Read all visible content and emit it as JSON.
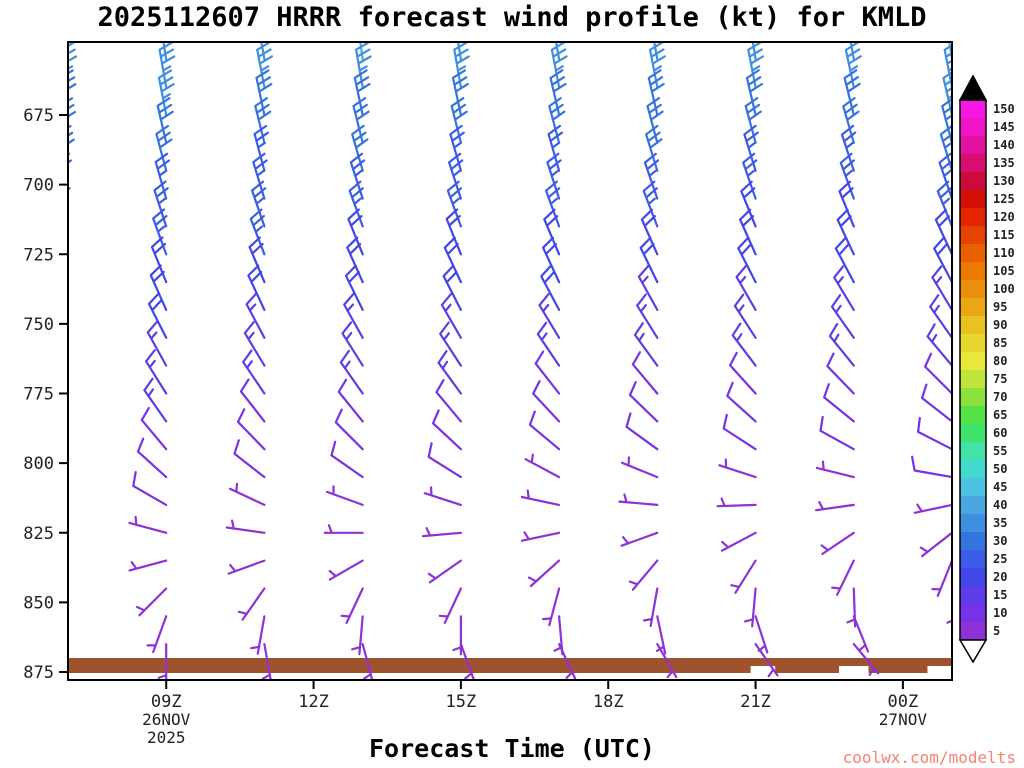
{
  "title": "2025112607 HRRR forecast wind profile (kt) for KMLD",
  "xlabel": "Forecast Time (UTC)",
  "watermark": {
    "text": "coolwx.com/modelts",
    "color": "#fa8072"
  },
  "chart_data": {
    "type": "wind-barb-profile",
    "units": "kt",
    "y_axis": {
      "label_values": [
        675,
        700,
        725,
        750,
        775,
        800,
        825,
        850,
        875
      ]
    },
    "x_axis": {
      "tick_hours": [
        9,
        12,
        15,
        18,
        21,
        24
      ],
      "tick_labels": [
        "09Z",
        "12Z",
        "15Z",
        "18Z",
        "21Z",
        "00Z"
      ],
      "date_labels": [
        {
          "text": "26NOV",
          "hour": 9,
          "row": 0
        },
        {
          "text": "2025",
          "hour": 9,
          "row": 1
        },
        {
          "text": "27NOV",
          "hour": 24,
          "row": 0
        }
      ]
    },
    "ground": {
      "color": "#a0522d",
      "gaps": [
        {
          "from": 20.9,
          "to": 21.4
        },
        {
          "from": 22.7,
          "to": 23.3
        },
        {
          "from": 24.5,
          "to": 25.1
        }
      ]
    },
    "colorbar": {
      "values": [
        5,
        10,
        15,
        20,
        25,
        30,
        35,
        40,
        45,
        50,
        55,
        60,
        65,
        70,
        75,
        80,
        85,
        90,
        95,
        100,
        105,
        110,
        115,
        120,
        125,
        130,
        135,
        140,
        145,
        150
      ],
      "colors": [
        "#8c32d7",
        "#7632e6",
        "#5f3ce8",
        "#4146e8",
        "#3b5ce8",
        "#3573e0",
        "#3f8ee0",
        "#49a8e0",
        "#4cc3e2",
        "#44d9cf",
        "#41e3a8",
        "#3fe36b",
        "#55e246",
        "#8ae23f",
        "#bfe53c",
        "#e8e83a",
        "#e8d72e",
        "#e9c122",
        "#e9a716",
        "#ea8e0b",
        "#ea7a02",
        "#e85f00",
        "#e74300",
        "#e32600",
        "#d40f06",
        "#cb0b3a",
        "#d40f6e",
        "#e212a0",
        "#ef14c6",
        "#f816e4"
      ]
    },
    "pressure_levels": [
      655,
      665,
      675,
      685,
      695,
      705,
      715,
      725,
      735,
      745,
      755,
      765,
      775,
      785,
      795,
      805,
      815,
      825,
      835,
      845,
      855,
      865
    ],
    "columns": [
      {
        "hour": 7,
        "speeds": [
          35,
          35,
          30,
          30,
          30,
          25,
          25,
          25,
          20,
          20,
          20,
          15,
          15,
          15,
          10,
          10,
          10,
          10,
          5,
          5,
          5,
          5
        ],
        "dirs": [
          350,
          350,
          349,
          348,
          346,
          344,
          342,
          340,
          338,
          336,
          334,
          332,
          330,
          327,
          323,
          318,
          310,
          295,
          270,
          240,
          210,
          190
        ]
      },
      {
        "hour": 9,
        "speeds": [
          35,
          35,
          35,
          30,
          30,
          25,
          25,
          25,
          20,
          20,
          20,
          15,
          15,
          15,
          10,
          10,
          10,
          5,
          5,
          5,
          5,
          5
        ],
        "dirs": [
          351,
          350,
          349,
          347,
          345,
          344,
          342,
          340,
          338,
          336,
          333,
          331,
          328,
          325,
          320,
          312,
          300,
          285,
          255,
          225,
          200,
          180
        ]
      },
      {
        "hour": 11,
        "speeds": [
          35,
          35,
          30,
          30,
          25,
          25,
          25,
          25,
          20,
          20,
          15,
          15,
          15,
          10,
          10,
          10,
          5,
          5,
          5,
          5,
          5,
          5
        ],
        "dirs": [
          350,
          349,
          348,
          346,
          345,
          343,
          341,
          339,
          337,
          335,
          332,
          329,
          326,
          322,
          316,
          308,
          295,
          278,
          250,
          215,
          190,
          170
        ]
      },
      {
        "hour": 13,
        "speeds": [
          40,
          35,
          30,
          30,
          30,
          25,
          25,
          20,
          20,
          20,
          15,
          15,
          15,
          10,
          10,
          10,
          5,
          5,
          5,
          5,
          5,
          5
        ],
        "dirs": [
          352,
          350,
          348,
          346,
          344,
          342,
          340,
          338,
          336,
          334,
          331,
          328,
          325,
          321,
          315,
          305,
          290,
          270,
          240,
          205,
          185,
          165
        ]
      },
      {
        "hour": 15,
        "speeds": [
          35,
          35,
          30,
          30,
          25,
          25,
          25,
          20,
          20,
          20,
          15,
          15,
          15,
          10,
          10,
          10,
          5,
          5,
          5,
          5,
          5,
          5
        ],
        "dirs": [
          351,
          350,
          348,
          346,
          344,
          342,
          340,
          338,
          335,
          333,
          330,
          327,
          324,
          320,
          313,
          302,
          288,
          265,
          235,
          205,
          180,
          160
        ]
      },
      {
        "hour": 17,
        "speeds": [
          35,
          35,
          30,
          30,
          25,
          25,
          25,
          20,
          20,
          20,
          15,
          15,
          10,
          10,
          10,
          5,
          5,
          5,
          5,
          5,
          5,
          5
        ],
        "dirs": [
          350,
          349,
          347,
          345,
          344,
          342,
          340,
          337,
          335,
          332,
          329,
          326,
          322,
          317,
          310,
          298,
          282,
          258,
          228,
          195,
          175,
          155
        ]
      },
      {
        "hour": 19,
        "speeds": [
          35,
          35,
          30,
          30,
          30,
          25,
          25,
          20,
          20,
          15,
          15,
          15,
          10,
          10,
          10,
          5,
          5,
          5,
          5,
          5,
          5,
          5
        ],
        "dirs": [
          350,
          349,
          347,
          345,
          343,
          341,
          339,
          336,
          334,
          331,
          328,
          324,
          320,
          314,
          306,
          292,
          275,
          250,
          220,
          190,
          168,
          150
        ]
      },
      {
        "hour": 21,
        "speeds": [
          35,
          35,
          30,
          30,
          25,
          25,
          20,
          20,
          20,
          15,
          15,
          15,
          10,
          10,
          10,
          5,
          5,
          5,
          5,
          5,
          5,
          5
        ],
        "dirs": [
          351,
          349,
          347,
          345,
          343,
          341,
          338,
          336,
          333,
          330,
          327,
          323,
          318,
          312,
          303,
          288,
          268,
          242,
          212,
          185,
          162,
          145
        ]
      },
      {
        "hour": 23,
        "speeds": [
          35,
          35,
          30,
          30,
          25,
          25,
          20,
          20,
          20,
          15,
          15,
          15,
          10,
          10,
          10,
          5,
          5,
          5,
          5,
          5,
          5,
          5
        ],
        "dirs": [
          350,
          348,
          346,
          344,
          342,
          340,
          338,
          335,
          332,
          329,
          325,
          321,
          316,
          309,
          299,
          284,
          262,
          236,
          206,
          178,
          158,
          140
        ]
      },
      {
        "hour": 25,
        "speeds": [
          40,
          35,
          35,
          30,
          30,
          25,
          25,
          20,
          20,
          15,
          15,
          15,
          10,
          10,
          10,
          10,
          5,
          5,
          5,
          5,
          5,
          5
        ],
        "dirs": [
          351,
          349,
          347,
          345,
          343,
          341,
          338,
          335,
          332,
          329,
          325,
          320,
          315,
          308,
          297,
          280,
          258,
          232,
          202,
          175,
          155,
          138
        ]
      }
    ]
  }
}
